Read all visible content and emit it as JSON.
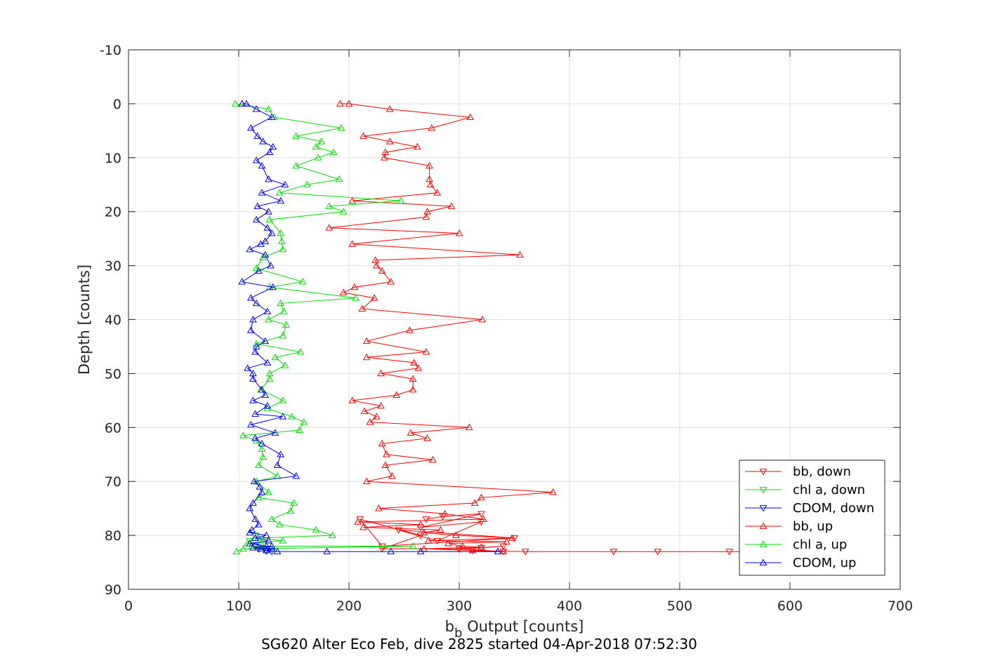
{
  "chart_data": {
    "type": "line",
    "xlabel_main": "b",
    "xlabel_sub": "b",
    "xlabel_rest": " Output [counts]",
    "ylabel": "Depth [counts]",
    "caption": "SG620 Alter Eco Feb, dive 2825 started 04-Apr-2018 07:52:30",
    "xlim": [
      0,
      700
    ],
    "ylim": [
      -10,
      90
    ],
    "y_reversed": true,
    "xticks": [
      0,
      100,
      200,
      300,
      400,
      500,
      600,
      700
    ],
    "yticks": [
      -10,
      0,
      10,
      20,
      30,
      40,
      50,
      60,
      70,
      80,
      90
    ],
    "grid": true,
    "legend_position": "bottom-right",
    "series": [
      {
        "name": "bb, down",
        "color": "#ff0000",
        "marker": "triangle-down",
        "x": [
          270,
          285,
          320,
          265,
          320,
          280,
          245,
          350,
          230,
          210,
          265,
          230,
          300,
          320,
          340,
          300,
          340,
          312,
          360,
          440,
          480,
          545,
          560
        ],
        "y": [
          77,
          76.5,
          76,
          78.5,
          77.5,
          81,
          79,
          80.5,
          82,
          77,
          80,
          82.5,
          82.5,
          82.3,
          82,
          82.5,
          83,
          82.8,
          83,
          83,
          83,
          83,
          83
        ]
      },
      {
        "name": "chl a, down",
        "color": "#00e000",
        "marker": "triangle-down",
        "x": [
          115,
          110,
          120,
          130,
          125
        ],
        "y": [
          80,
          81,
          82,
          82.5,
          83
        ]
      },
      {
        "name": "CDOM, down",
        "color": "#0000ff",
        "marker": "triangle-down",
        "x": [
          115,
          118,
          125,
          128,
          130
        ],
        "y": [
          82,
          82.5,
          82.8,
          82.5,
          83
        ]
      },
      {
        "name": "bb, up",
        "color": "#ff0000",
        "marker": "triangle-up",
        "x": [
          192,
          200,
          237,
          310,
          275,
          213,
          237,
          262,
          233,
          232,
          273,
          273,
          274,
          280,
          203,
          293,
          271,
          270,
          182,
          300,
          203,
          355,
          224,
          225,
          230,
          238,
          205,
          195,
          223,
          212,
          321,
          255,
          216,
          270,
          216,
          259,
          263,
          229,
          258,
          258,
          243,
          203,
          229,
          214,
          225,
          219,
          309,
          256,
          271,
          230,
          234,
          276,
          233,
          239,
          216,
          385,
          320,
          314,
          227,
          287,
          322,
          208,
          265,
          213,
          283,
          268,
          297,
          348,
          272,
          343,
          290,
          303,
          320,
          268,
          312,
          340,
          335
        ],
        "y": [
          0,
          0,
          1,
          2.5,
          4.5,
          6,
          7,
          8,
          9,
          10,
          11.5,
          14,
          15,
          16.5,
          18,
          19,
          20,
          21,
          23,
          24,
          26,
          28,
          29,
          30,
          31,
          33,
          34,
          35,
          36,
          38,
          40,
          42,
          44,
          46,
          47,
          48,
          49,
          50,
          51,
          53,
          54,
          55,
          56,
          57,
          58,
          59,
          60,
          61,
          62,
          63,
          65,
          66,
          67,
          69,
          70,
          72,
          73,
          74,
          75,
          76,
          77,
          77.5,
          78,
          78.5,
          79,
          79.5,
          80,
          80.5,
          81,
          81.2,
          81.5,
          82,
          82.2,
          82.5,
          82.8,
          83,
          83
        ]
      },
      {
        "name": "chl a, up",
        "color": "#00e000",
        "marker": "triangle-up",
        "x": [
          97,
          127,
          132,
          193,
          152,
          175,
          170,
          186,
          172,
          152,
          191,
          162,
          137,
          247,
          182,
          195,
          128,
          138,
          139,
          140,
          122,
          116,
          158,
          128,
          206,
          138,
          141,
          127,
          143,
          140,
          116,
          156,
          133,
          142,
          128,
          128,
          120,
          140,
          126,
          148,
          159,
          155,
          104,
          116,
          121,
          122,
          118,
          135,
          116,
          127,
          118,
          150,
          147,
          130,
          137,
          170,
          185,
          118,
          140,
          108,
          112,
          258,
          104,
          98
        ],
        "y": [
          0,
          1,
          2.5,
          4.5,
          6,
          7,
          8,
          9,
          10,
          11.5,
          14,
          15,
          16.5,
          18,
          19,
          20,
          21.5,
          24,
          25.5,
          27,
          28.5,
          30.5,
          33,
          34,
          36,
          37,
          38.5,
          40,
          41,
          43,
          44.5,
          46,
          47,
          48.5,
          50,
          51,
          53,
          55,
          56.5,
          58,
          59,
          60.5,
          61.5,
          62.5,
          64,
          65.5,
          67,
          69,
          70,
          72,
          73,
          74,
          75.5,
          77,
          78,
          79,
          80,
          80.5,
          81,
          81.5,
          82,
          82,
          82.5,
          83
        ]
      },
      {
        "name": "CDOM, up",
        "color": "#0000ff",
        "marker": "triangle-up",
        "x": [
          103,
          107,
          116,
          130,
          111,
          117,
          122,
          131,
          128,
          116,
          121,
          127,
          142,
          121,
          138,
          117,
          127,
          116,
          126,
          130,
          124,
          120,
          110,
          124,
          129,
          118,
          103,
          131,
          111,
          116,
          126,
          113,
          111,
          124,
          116,
          115,
          126,
          108,
          113,
          113,
          121,
          124,
          113,
          126,
          115,
          140,
          111,
          133,
          115,
          121,
          138,
          135,
          152,
          114,
          119,
          121,
          113,
          110,
          115,
          118,
          112,
          110,
          125,
          115,
          127,
          110,
          125,
          130,
          113,
          120,
          125,
          135,
          180,
          238,
          265,
          335
        ],
        "y": [
          0,
          0,
          1,
          2.5,
          4.5,
          6,
          7,
          8,
          9,
          10.5,
          11.5,
          14,
          15,
          16.5,
          18,
          19,
          20,
          21.5,
          23,
          24,
          25.5,
          26,
          27,
          28,
          30,
          31,
          33,
          34,
          36,
          37,
          38.5,
          40,
          42,
          44,
          45,
          46,
          48,
          49,
          50,
          51,
          53,
          54,
          55,
          56,
          57.5,
          58,
          59.5,
          61,
          62,
          63,
          65,
          67,
          69,
          70,
          71,
          72,
          74,
          75,
          77,
          78,
          79,
          79.5,
          80,
          80.5,
          81,
          81.5,
          82,
          82,
          82.3,
          82.5,
          82.8,
          83,
          83,
          83,
          83,
          83
        ]
      }
    ]
  }
}
